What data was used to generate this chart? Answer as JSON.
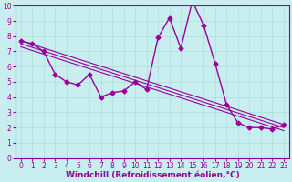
{
  "x": [
    0,
    1,
    2,
    3,
    4,
    5,
    6,
    7,
    8,
    9,
    10,
    11,
    12,
    13,
    14,
    15,
    16,
    17,
    18,
    19,
    20,
    21,
    22,
    23
  ],
  "y": [
    7.7,
    7.5,
    7.0,
    5.5,
    5.0,
    4.8,
    5.5,
    4.0,
    4.3,
    4.4,
    5.0,
    4.5,
    7.9,
    9.2,
    7.2,
    10.3,
    8.7,
    6.2,
    3.5,
    2.3,
    2.0,
    2.0,
    1.9,
    2.2
  ],
  "color": "#990099",
  "bg_color": "#c8eef0",
  "grid_color": "#aadddd",
  "xlabel": "Windchill (Refroidissement éolien,°C)",
  "ylim": [
    0,
    10
  ],
  "xlim": [
    -0.5,
    23.5
  ],
  "yticks": [
    0,
    1,
    2,
    3,
    4,
    5,
    6,
    7,
    8,
    9,
    10
  ],
  "xticks": [
    0,
    1,
    2,
    3,
    4,
    5,
    6,
    7,
    8,
    9,
    10,
    11,
    12,
    13,
    14,
    15,
    16,
    17,
    18,
    19,
    20,
    21,
    22,
    23
  ],
  "xlabel_fontsize": 6.5,
  "tick_fontsize": 5.5,
  "line_width": 1.0,
  "marker": "D",
  "marker_size": 2.5,
  "reg_line_start": 7.7,
  "reg_line_end": 2.2,
  "reg_offsets": [
    0,
    0.2,
    0.4
  ]
}
